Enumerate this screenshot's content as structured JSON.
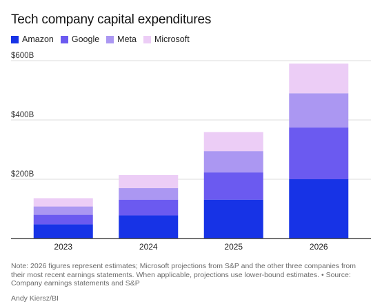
{
  "colors": {
    "Amazon": "#1733e6",
    "Google": "#6b5af0",
    "Meta": "#ab97f2",
    "Microsoft": "#eccdf6",
    "grid": "#dcdcdc",
    "axis": "#222222"
  },
  "note": "Note: 2026 figures represent estimates; Microsoft projections from S&P and the other three companies from their most recent earnings statements. When applicable, projections use lower-bound estimates. • Source: Company earnings statements and S&P",
  "credit": "Andy Kiersz/BI",
  "chart_data": {
    "type": "bar",
    "stacked": true,
    "title": "Tech company capital expenditures",
    "categories": [
      "2023",
      "2024",
      "2025",
      "2026"
    ],
    "series": [
      {
        "name": "Amazon",
        "values": [
          48,
          78,
          131,
          200
        ]
      },
      {
        "name": "Google",
        "values": [
          32,
          53,
          92,
          175
        ]
      },
      {
        "name": "Meta",
        "values": [
          28,
          39,
          72,
          115
        ]
      },
      {
        "name": "Microsoft",
        "values": [
          28,
          44,
          64,
          100
        ]
      }
    ],
    "ylim": [
      0,
      600
    ],
    "yticks": [
      200,
      400,
      600
    ],
    "ytick_labels": [
      "$200B",
      "$400B",
      "$600B"
    ],
    "xlabel": "",
    "ylabel": "",
    "grid": true,
    "legend": "top-left"
  }
}
